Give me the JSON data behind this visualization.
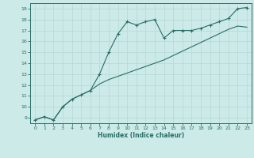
{
  "xlabel": "Humidex (Indice chaleur)",
  "ylabel": "",
  "bg_color": "#cceae7",
  "grid_color": "#b8dbd8",
  "line_color": "#2a6e65",
  "xlim": [
    -0.5,
    23.5
  ],
  "ylim": [
    8.5,
    19.5
  ],
  "xticks": [
    0,
    1,
    2,
    3,
    4,
    5,
    6,
    7,
    8,
    9,
    10,
    11,
    12,
    13,
    14,
    15,
    16,
    17,
    18,
    19,
    20,
    21,
    22,
    23
  ],
  "yticks": [
    9,
    10,
    11,
    12,
    13,
    14,
    15,
    16,
    17,
    18,
    19
  ],
  "line1_x": [
    0,
    1,
    2,
    3,
    4,
    5,
    6,
    7,
    8,
    9,
    10,
    11,
    12,
    13,
    14,
    15,
    16,
    17,
    18,
    19,
    20,
    21,
    22,
    23
  ],
  "line1_y": [
    8.8,
    9.1,
    8.8,
    10.0,
    10.7,
    11.1,
    11.5,
    12.1,
    12.5,
    12.8,
    13.1,
    13.4,
    13.7,
    14.0,
    14.3,
    14.7,
    15.1,
    15.5,
    15.9,
    16.3,
    16.7,
    17.1,
    17.4,
    17.3
  ],
  "line2_x": [
    0,
    1,
    2,
    3,
    4,
    5,
    6,
    7,
    8,
    9,
    10,
    11,
    12,
    13,
    14,
    15,
    16,
    17,
    18,
    19,
    20,
    21,
    22,
    23
  ],
  "line2_y": [
    8.8,
    9.1,
    8.8,
    10.0,
    10.7,
    11.1,
    11.5,
    13.0,
    15.0,
    16.7,
    17.8,
    17.5,
    17.8,
    18.0,
    16.3,
    17.0,
    17.0,
    17.0,
    17.2,
    17.5,
    17.8,
    18.1,
    19.0,
    19.1
  ]
}
